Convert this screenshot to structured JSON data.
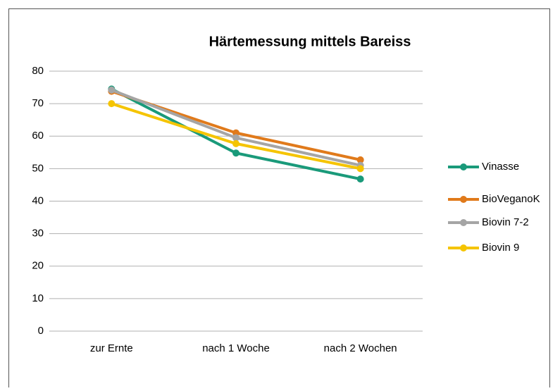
{
  "chart_data": {
    "type": "line",
    "title": "Härtemessung mittels Bareiss",
    "categories": [
      "zur Ernte",
      "nach 1 Woche",
      "nach 2 Wochen"
    ],
    "series": [
      {
        "name": "Vinasse",
        "color": "#1a9a7a",
        "values": [
          74.5,
          54.8,
          46.8
        ]
      },
      {
        "name": "BioVeganoK",
        "color": "#e07a1b",
        "values": [
          73.8,
          61.0,
          52.7
        ]
      },
      {
        "name": "Biovin 7-2",
        "color": "#a5a5a5",
        "values": [
          74.2,
          59.5,
          51.0
        ]
      },
      {
        "name": "Biovin 9",
        "color": "#f5c400",
        "values": [
          70.0,
          57.7,
          50.0
        ]
      }
    ],
    "ylim": [
      0,
      80
    ],
    "yticks": [
      0,
      10,
      20,
      30,
      40,
      50,
      60,
      70,
      80
    ],
    "grid": true,
    "legend": "right"
  }
}
